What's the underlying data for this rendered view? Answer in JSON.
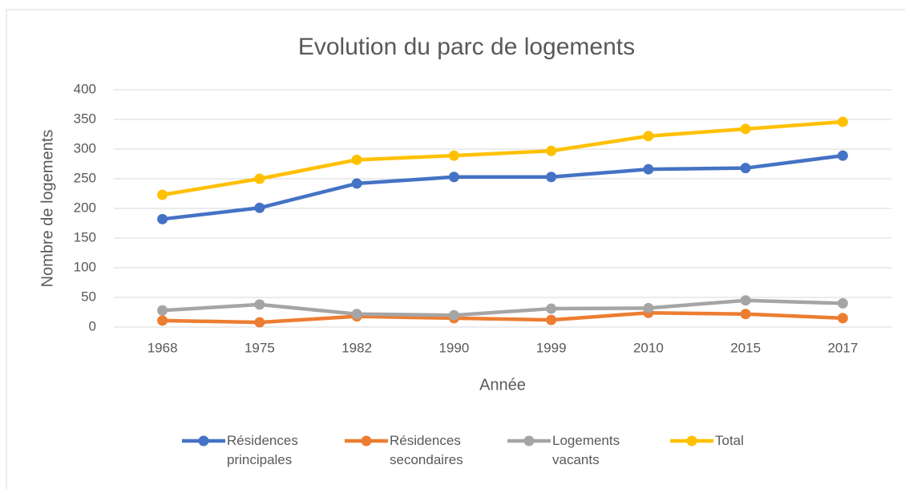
{
  "chart_data": {
    "type": "line",
    "title": "Evolution du parc de logements",
    "x_label": "Année",
    "y_label": "Nombre de logements",
    "categories": [
      "1968",
      "1975",
      "1982",
      "1990",
      "1999",
      "2010",
      "2015",
      "2017"
    ],
    "series": [
      {
        "name": "Résidences principales",
        "color": "#4472c4",
        "values": [
          182,
          201,
          242,
          253,
          253,
          266,
          268,
          289
        ]
      },
      {
        "name": "Résidences secondaires",
        "color": "#ed7d31",
        "values": [
          11,
          8,
          18,
          15,
          12,
          24,
          22,
          15
        ]
      },
      {
        "name": "Logements vacants",
        "color": "#a5a5a5",
        "values": [
          28,
          38,
          22,
          20,
          31,
          32,
          45,
          40
        ]
      },
      {
        "name": "Total",
        "color": "#ffc000",
        "values": [
          223,
          250,
          282,
          289,
          297,
          322,
          334,
          346
        ]
      }
    ],
    "ylim": [
      0,
      400
    ],
    "yticks": [
      0,
      50,
      100,
      150,
      200,
      250,
      300,
      350,
      400
    ],
    "grid": true,
    "legend": "bottom"
  }
}
